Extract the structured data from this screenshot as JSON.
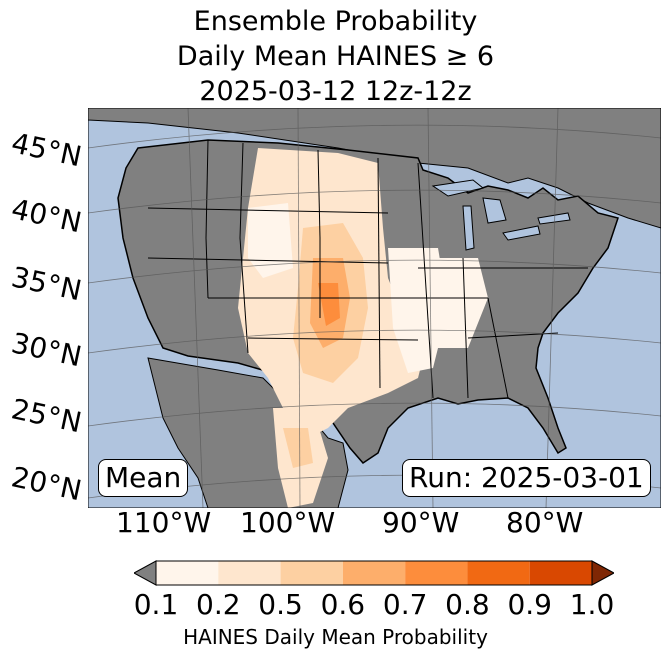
{
  "title": {
    "line1": "Ensemble Probability",
    "line2": "Daily Mean HAINES ≥ 6",
    "line3": "2025-03-12 12z-12z"
  },
  "map": {
    "region": "Continental United States",
    "lat_labels": [
      "45°N",
      "40°N",
      "35°N",
      "30°N",
      "25°N",
      "20°N"
    ],
    "lon_labels": [
      "110°W",
      "100°W",
      "90°W",
      "80°W"
    ],
    "mean_label": "Mean",
    "run_label": "Run: 2025-03-01",
    "colors": {
      "ocean": "#b0c4de",
      "land_masked": "#808080",
      "borders": "#000000",
      "graticule": "#555555"
    }
  },
  "colorbar": {
    "label": "HAINES Daily Mean Probability",
    "ticks": [
      "0.1",
      "0.2",
      "0.5",
      "0.6",
      "0.7",
      "0.8",
      "0.9",
      "1.0"
    ],
    "under_color": "#808080",
    "over_color": "#7f2704",
    "colors": [
      "#fff5eb",
      "#fee6ce",
      "#fdd0a2",
      "#fdae6b",
      "#fd8d3c",
      "#f16913",
      "#d94801"
    ]
  }
}
